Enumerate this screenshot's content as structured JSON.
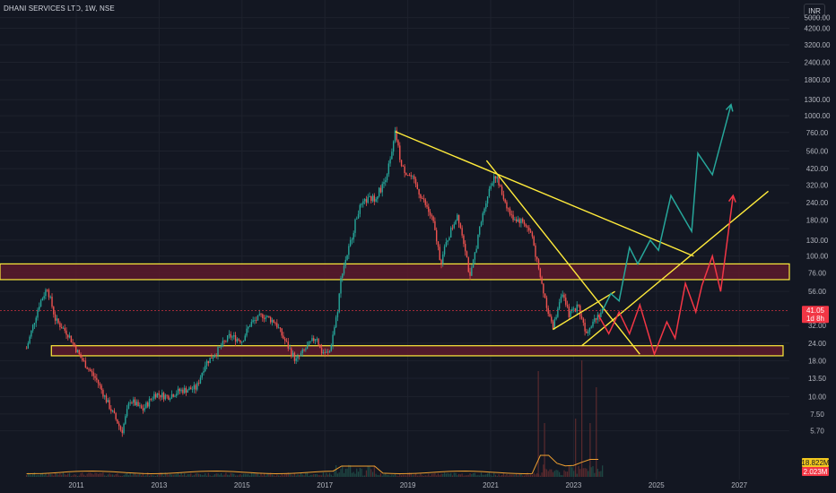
{
  "header": {
    "title": "DHANI SERVICES LTD, 1W, NSE",
    "currency": "INR"
  },
  "chart_data": {
    "type": "candlestick",
    "title": "DHANI SERVICES LTD, 1W, NSE",
    "y_scale": "log",
    "y_ticks": [
      "5000.00",
      "4200.00",
      "3200.00",
      "2400.00",
      "1800.00",
      "1300.00",
      "1000.00",
      "760.00",
      "560.00",
      "420.00",
      "320.00",
      "240.00",
      "180.00",
      "130.00",
      "100.00",
      "76.00",
      "56.00",
      "32.00",
      "24.00",
      "18.00",
      "13.50",
      "10.00",
      "7.50",
      "5.70"
    ],
    "x_ticks": [
      "2011",
      "2013",
      "2015",
      "2017",
      "2019",
      "2021",
      "2023",
      "2025",
      "2027"
    ],
    "price_path": [
      {
        "x": 2009.8,
        "y": 22
      },
      {
        "x": 2010.1,
        "y": 45
      },
      {
        "x": 2010.3,
        "y": 60
      },
      {
        "x": 2010.5,
        "y": 35
      },
      {
        "x": 2010.8,
        "y": 28
      },
      {
        "x": 2011.1,
        "y": 19
      },
      {
        "x": 2011.5,
        "y": 13
      },
      {
        "x": 2011.8,
        "y": 8.5
      },
      {
        "x": 2012.0,
        "y": 6.5
      },
      {
        "x": 2012.1,
        "y": 5.6
      },
      {
        "x": 2012.3,
        "y": 9.5
      },
      {
        "x": 2012.6,
        "y": 8
      },
      {
        "x": 2012.9,
        "y": 10.5
      },
      {
        "x": 2013.2,
        "y": 10
      },
      {
        "x": 2013.5,
        "y": 11
      },
      {
        "x": 2013.9,
        "y": 11.5
      },
      {
        "x": 2014.1,
        "y": 17
      },
      {
        "x": 2014.4,
        "y": 21
      },
      {
        "x": 2014.7,
        "y": 27
      },
      {
        "x": 2015.0,
        "y": 25
      },
      {
        "x": 2015.2,
        "y": 33
      },
      {
        "x": 2015.5,
        "y": 38
      },
      {
        "x": 2015.8,
        "y": 34
      },
      {
        "x": 2016.0,
        "y": 26
      },
      {
        "x": 2016.3,
        "y": 18
      },
      {
        "x": 2016.6,
        "y": 23
      },
      {
        "x": 2016.8,
        "y": 27
      },
      {
        "x": 2016.9,
        "y": 21
      },
      {
        "x": 2017.1,
        "y": 20
      },
      {
        "x": 2017.3,
        "y": 40
      },
      {
        "x": 2017.4,
        "y": 75
      },
      {
        "x": 2017.6,
        "y": 120
      },
      {
        "x": 2017.8,
        "y": 210
      },
      {
        "x": 2018.0,
        "y": 250
      },
      {
        "x": 2018.2,
        "y": 260
      },
      {
        "x": 2018.4,
        "y": 320
      },
      {
        "x": 2018.6,
        "y": 500
      },
      {
        "x": 2018.7,
        "y": 770
      },
      {
        "x": 2018.85,
        "y": 430
      },
      {
        "x": 2019.1,
        "y": 360
      },
      {
        "x": 2019.4,
        "y": 240
      },
      {
        "x": 2019.6,
        "y": 180
      },
      {
        "x": 2019.8,
        "y": 90
      },
      {
        "x": 2019.95,
        "y": 130
      },
      {
        "x": 2020.2,
        "y": 200
      },
      {
        "x": 2020.4,
        "y": 110
      },
      {
        "x": 2020.5,
        "y": 68
      },
      {
        "x": 2020.7,
        "y": 140
      },
      {
        "x": 2020.9,
        "y": 260
      },
      {
        "x": 2021.1,
        "y": 390
      },
      {
        "x": 2021.25,
        "y": 290
      },
      {
        "x": 2021.5,
        "y": 190
      },
      {
        "x": 2021.8,
        "y": 175
      },
      {
        "x": 2022.0,
        "y": 140
      },
      {
        "x": 2022.15,
        "y": 80
      },
      {
        "x": 2022.3,
        "y": 52
      },
      {
        "x": 2022.5,
        "y": 30
      },
      {
        "x": 2022.7,
        "y": 55
      },
      {
        "x": 2022.9,
        "y": 38
      },
      {
        "x": 2023.1,
        "y": 45
      },
      {
        "x": 2023.3,
        "y": 29
      },
      {
        "x": 2023.5,
        "y": 36
      },
      {
        "x": 2023.7,
        "y": 41.05
      }
    ],
    "zones": [
      {
        "y_low": 68,
        "y_high": 88
      },
      {
        "y_low": 19.5,
        "y_high": 23
      }
    ],
    "trendlines": [
      {
        "from": {
          "x": 2018.7,
          "y": 770
        },
        "to": {
          "x": 2025.9,
          "y": 100
        }
      },
      {
        "from": {
          "x": 2020.9,
          "y": 480
        },
        "to": {
          "x": 2024.6,
          "y": 20
        }
      },
      {
        "from": {
          "x": 2022.5,
          "y": 30
        },
        "to": {
          "x": 2024.0,
          "y": 56
        }
      },
      {
        "from": {
          "x": 2023.2,
          "y": 23
        },
        "to": {
          "x": 2027.7,
          "y": 290
        }
      }
    ],
    "bull_projection": [
      {
        "x": 2023.7,
        "y": 41
      },
      {
        "x": 2023.9,
        "y": 54
      },
      {
        "x": 2024.1,
        "y": 48
      },
      {
        "x": 2024.35,
        "y": 115
      },
      {
        "x": 2024.55,
        "y": 88
      },
      {
        "x": 2024.85,
        "y": 130
      },
      {
        "x": 2025.05,
        "y": 110
      },
      {
        "x": 2025.35,
        "y": 270
      },
      {
        "x": 2025.85,
        "y": 150
      },
      {
        "x": 2026.0,
        "y": 540
      },
      {
        "x": 2026.35,
        "y": 380
      },
      {
        "x": 2026.8,
        "y": 1200
      }
    ],
    "bear_projection": [
      {
        "x": 2023.6,
        "y": 38
      },
      {
        "x": 2023.85,
        "y": 28
      },
      {
        "x": 2024.1,
        "y": 40
      },
      {
        "x": 2024.35,
        "y": 28
      },
      {
        "x": 2024.6,
        "y": 45
      },
      {
        "x": 2024.95,
        "y": 20
      },
      {
        "x": 2025.25,
        "y": 34
      },
      {
        "x": 2025.45,
        "y": 26
      },
      {
        "x": 2025.7,
        "y": 64
      },
      {
        "x": 2025.95,
        "y": 40
      },
      {
        "x": 2026.1,
        "y": 62
      },
      {
        "x": 2026.35,
        "y": 100
      },
      {
        "x": 2026.55,
        "y": 56
      },
      {
        "x": 2026.85,
        "y": 270
      }
    ],
    "last_price": "41.05",
    "countdown": "1d 8h",
    "volume_labels": [
      "18.822M",
      "2.023M"
    ],
    "colors": {
      "up": "#26a69a",
      "down": "#ef5350",
      "zone_fill": "#5d1a2b",
      "zone_border": "#ffeb3b",
      "trend": "#ffeb3b",
      "volume_ma": "#f0a030",
      "bull": "#26a69a",
      "bear": "#f23645"
    }
  }
}
